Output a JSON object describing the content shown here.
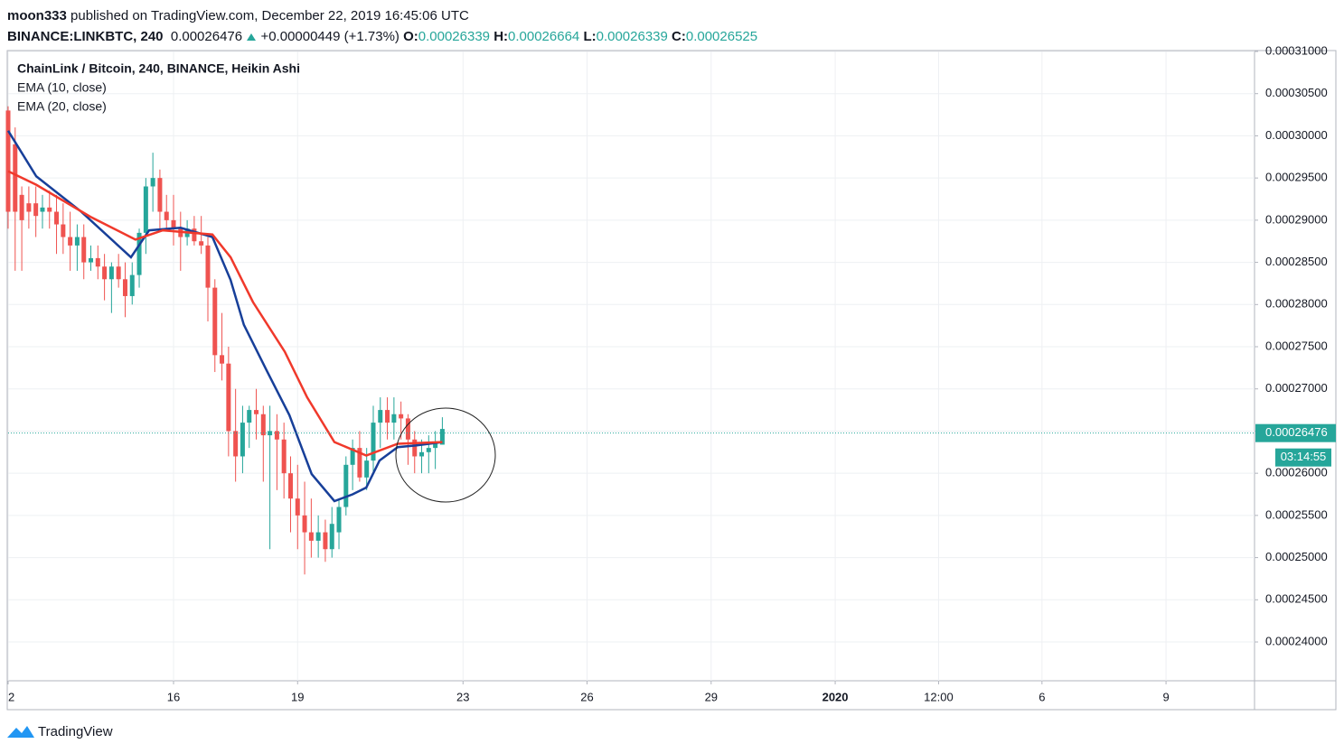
{
  "header": {
    "author": "moon333",
    "published": "published on TradingView.com, December 22, 2019 16:45:06 UTC",
    "symbol": "BINANCE:LINKBTC, 240",
    "change": "+0.00000449 (+1.73%)",
    "ohlc_labels": [
      "O:",
      "H:",
      "L:",
      "C:"
    ]
  },
  "chart_data": {
    "type": "candlestick",
    "title": "ChainLink / Bitcoin, 240, BINANCE, Heikin Ashi",
    "up_color": "#26a69a",
    "down_color": "#ef5350",
    "x": [
      12,
      12.17,
      12.33,
      12.5,
      12.67,
      12.83,
      13,
      13.17,
      13.33,
      13.5,
      13.67,
      13.83,
      14,
      14.17,
      14.33,
      14.5,
      14.67,
      14.83,
      15,
      15.17,
      15.33,
      15.5,
      15.67,
      15.83,
      16,
      16.17,
      16.33,
      16.5,
      16.67,
      16.83,
      17,
      17.17,
      17.33,
      17.5,
      17.67,
      17.83,
      18,
      18.17,
      18.33,
      18.5,
      18.67,
      18.83,
      19,
      19.17,
      19.33,
      19.5,
      19.67,
      19.83,
      20,
      20.17,
      20.33,
      20.5,
      20.67,
      20.83,
      21,
      21.17,
      21.33,
      21.5,
      21.67,
      21.83,
      22,
      22.17,
      22.33,
      22.5
    ],
    "open": [
      0.000303,
      0.000299,
      0.000293,
      0.000292,
      0.000292,
      0.000291,
      0.0002915,
      0.000291,
      0.0002895,
      0.000288,
      0.000287,
      0.000288,
      0.000285,
      0.0002855,
      0.0002845,
      0.000283,
      0.0002845,
      0.000283,
      0.000281,
      0.0002835,
      0.0002885,
      0.000294,
      0.000295,
      0.000291,
      0.00029,
      0.000289,
      0.000288,
      0.000289,
      0.0002875,
      0.000287,
      0.000282,
      0.000274,
      0.000273,
      0.000265,
      0.000262,
      0.000266,
      0.0002675,
      0.000267,
      0.0002645,
      0.000265,
      0.000264,
      0.00026,
      0.000257,
      0.000255,
      0.000253,
      0.000252,
      0.000253,
      0.000251,
      0.000253,
      0.000256,
      0.000261,
      0.000263,
      0.0002595,
      0.0002615,
      0.000266,
      0.0002675,
      0.000266,
      0.000267,
      0.0002665,
      0.000264,
      0.000262,
      0.0002625,
      0.000263,
      0.00026339
    ],
    "high": [
      0.0003035,
      0.000301,
      0.000294,
      0.000294,
      0.000294,
      0.000293,
      0.0002935,
      0.000293,
      0.000292,
      0.000291,
      0.0002895,
      0.0002895,
      0.000287,
      0.000287,
      0.000286,
      0.000285,
      0.000286,
      0.000285,
      0.000285,
      0.000289,
      0.000295,
      0.000298,
      0.000296,
      0.000293,
      0.000293,
      0.000291,
      0.00029,
      0.0002905,
      0.0002905,
      0.000288,
      0.000283,
      0.000279,
      0.000275,
      0.00027,
      0.000268,
      0.000268,
      0.00027,
      0.000268,
      0.000268,
      0.000267,
      0.000266,
      0.000262,
      0.000261,
      0.000259,
      0.000257,
      0.000255,
      0.0002545,
      0.000256,
      0.000257,
      0.000262,
      0.000264,
      0.000265,
      0.000263,
      0.000268,
      0.000269,
      0.000269,
      0.000269,
      0.0002685,
      0.000267,
      0.000265,
      0.000264,
      0.0002645,
      0.000265,
      0.00026664
    ],
    "low": [
      0.000289,
      0.000284,
      0.000284,
      0.000289,
      0.000288,
      0.000289,
      0.000289,
      0.000286,
      0.000286,
      0.000284,
      0.000284,
      0.000283,
      0.000284,
      0.000283,
      0.0002805,
      0.000279,
      0.000282,
      0.0002785,
      0.00028,
      0.000282,
      0.000286,
      0.000291,
      0.000289,
      0.000289,
      0.000287,
      0.000284,
      0.000287,
      0.000287,
      0.000286,
      0.000278,
      0.000272,
      0.000271,
      0.000262,
      0.000259,
      0.00026,
      0.000263,
      0.000264,
      0.000259,
      0.000251,
      0.000258,
      0.000257,
      0.000253,
      0.000251,
      0.000248,
      0.00025,
      0.00025,
      0.0002495,
      0.00025,
      0.000251,
      0.000255,
      0.000258,
      0.000259,
      0.000258,
      0.00026,
      0.000263,
      0.000264,
      0.000264,
      0.000264,
      0.000261,
      0.00026,
      0.00026,
      0.00026,
      0.0002605,
      0.00026339
    ],
    "close": [
      0.000291,
      0.000291,
      0.00029,
      0.000291,
      0.0002905,
      0.0002915,
      0.000291,
      0.0002895,
      0.000288,
      0.000287,
      0.000288,
      0.000285,
      0.0002855,
      0.0002845,
      0.000283,
      0.0002845,
      0.000283,
      0.000281,
      0.0002835,
      0.0002885,
      0.000294,
      0.000295,
      0.000291,
      0.00029,
      0.000289,
      0.000288,
      0.000289,
      0.0002875,
      0.000287,
      0.000282,
      0.000274,
      0.000273,
      0.000265,
      0.000262,
      0.000266,
      0.0002675,
      0.000267,
      0.0002645,
      0.000265,
      0.000264,
      0.00026,
      0.000257,
      0.000255,
      0.000253,
      0.000252,
      0.000253,
      0.000251,
      0.000254,
      0.000256,
      0.000261,
      0.000263,
      0.0002595,
      0.0002615,
      0.000266,
      0.0002675,
      0.000266,
      0.000267,
      0.0002665,
      0.000264,
      0.000262,
      0.0002625,
      0.000263,
      0.0002635,
      0.00026525
    ],
    "series": [
      {
        "name": "EMA (10, close)",
        "color": "#173f99",
        "x": [
          12,
          12.68,
          13.77,
          14.97,
          15.41,
          16.17,
          16.94,
          17.38,
          17.7,
          18.25,
          18.8,
          19.34,
          19.89,
          20.33,
          20.66,
          20.98,
          21.42,
          21.86,
          22.5
        ],
        "values": [
          0.0003006,
          0.0002952,
          0.000291,
          0.0002856,
          0.0002888,
          0.0002891,
          0.000288,
          0.0002829,
          0.0002776,
          0.0002722,
          0.0002669,
          0.0002599,
          0.0002567,
          0.0002575,
          0.0002583,
          0.0002615,
          0.0002631,
          0.0002633,
          0.0002637
        ]
      },
      {
        "name": "EMA (20, close)",
        "color": "#f0392b",
        "x": [
          12,
          12.68,
          13.99,
          15.08,
          15.74,
          16.94,
          17.38,
          17.92,
          18.69,
          19.23,
          19.89,
          20.66,
          21.42,
          22.5
        ],
        "values": [
          0.0002958,
          0.0002942,
          0.0002904,
          0.0002877,
          0.0002888,
          0.0002883,
          0.0002856,
          0.0002803,
          0.0002744,
          0.000269,
          0.0002637,
          0.0002621,
          0.0002635,
          0.0002637
        ]
      }
    ],
    "last_price": 0.00026476,
    "countdown": "03:14:55",
    "xlim": [
      12,
      42.14
    ],
    "xticks": [
      {
        "value": 12,
        "label": "2"
      },
      16,
      19,
      23,
      26,
      29,
      {
        "value": 32,
        "label": "2020"
      },
      {
        "value": 34.5,
        "label": "12:00"
      },
      {
        "value": 37,
        "label": "6"
      },
      {
        "value": 40,
        "label": "9"
      }
    ],
    "ylim": [
      0.0002354,
      0.00031
    ],
    "yticks": [
      {
        "value": 0.00031,
        "label": "0.00031000"
      },
      {
        "value": 0.000305,
        "label": "0.00030500"
      },
      {
        "value": 0.0003,
        "label": "0.00030000"
      },
      {
        "value": 0.000295,
        "label": "0.00029500"
      },
      {
        "value": 0.00029,
        "label": "0.00029000"
      },
      {
        "value": 0.000285,
        "label": "0.00028500"
      },
      {
        "value": 0.00028,
        "label": "0.00028000"
      },
      {
        "value": 0.000275,
        "label": "0.00027500"
      },
      {
        "value": 0.00027,
        "label": "0.00027000"
      },
      {
        "value": 0.000265,
        "label": "0.00026500"
      },
      {
        "value": 0.00026,
        "label": "0.00026000"
      },
      {
        "value": 0.000255,
        "label": "0.00025500"
      },
      {
        "value": 0.00025,
        "label": "0.00025000"
      },
      {
        "value": 0.000245,
        "label": "0.00024500"
      },
      {
        "value": 0.00024,
        "label": "0.00024000"
      }
    ],
    "grid": true
  },
  "footer": {
    "brand": "TradingView"
  }
}
